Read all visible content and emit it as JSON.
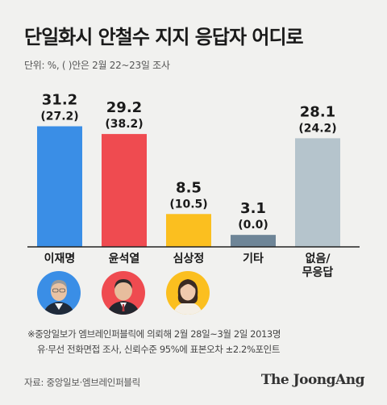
{
  "title": "단일화시 안철수 지지 응답자 어디로",
  "unit_note": "단위: %, ( )안은 2월 22~23일 조사",
  "chart_data": {
    "type": "bar",
    "categories": [
      "이재명",
      "윤석열",
      "심상정",
      "기타",
      "없음/\n무응답"
    ],
    "series": [
      {
        "values": [
          31.2,
          29.2,
          8.5,
          3.1,
          28.1
        ]
      }
    ],
    "previous_values": [
      "(27.2)",
      "(38.2)",
      "(10.5)",
      "(0.0)",
      "(24.2)"
    ],
    "value_labels": [
      "31.2",
      "29.2",
      "8.5",
      "3.1",
      "28.1"
    ],
    "colors": [
      "#3a8ee6",
      "#ef4b50",
      "#fbbf1f",
      "#6e8597",
      "#b5c4cc"
    ],
    "ylim": [
      0,
      36
    ],
    "grid": false
  },
  "candidates": [
    {
      "name": "이재명",
      "photo": "lee-jae-myung-photo",
      "bg": "#3a8ee6"
    },
    {
      "name": "윤석열",
      "photo": "yoon-suk-yeol-photo",
      "bg": "#ef4b50"
    },
    {
      "name": "심상정",
      "photo": "sim-sang-jeung-photo",
      "bg": "#fbbf1f"
    }
  ],
  "footnote_line1": "※중앙일보가 엠브레인퍼블릭에 의뢰해 2월 28일~3월 2일 2013명",
  "footnote_line2": "유·무선 전화면접 조사, 신뢰수준 95%에 표본오차 ±2.2%포인트",
  "source": "자료: 중앙일보·엠브레인퍼블릭",
  "brand": "The JoongAng"
}
